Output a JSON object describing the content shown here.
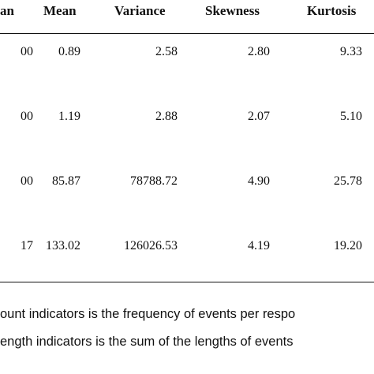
{
  "table": {
    "headers": {
      "median_partial": "an",
      "mean": "Mean",
      "variance": "Variance",
      "skewness": "Skewness",
      "kurtosis": "Kurtosis"
    },
    "rows": [
      {
        "median_partial": "00",
        "mean": "0.89",
        "variance": "2.58",
        "skewness": "2.80",
        "kurtosis": "9.33"
      },
      {
        "median_partial": "00",
        "mean": "1.19",
        "variance": "2.88",
        "skewness": "2.07",
        "kurtosis": "5.10"
      },
      {
        "median_partial": "00",
        "mean": "85.87",
        "variance": "78788.72",
        "skewness": "4.90",
        "kurtosis": "25.78"
      },
      {
        "median_partial": "17",
        "mean": "133.02",
        "variance": "126026.53",
        "skewness": "4.19",
        "kurtosis": "19.20"
      }
    ]
  },
  "notes": [
    "ount indicators is the frequency of events per respo",
    "ength indicators is the sum of the lengths of events"
  ]
}
